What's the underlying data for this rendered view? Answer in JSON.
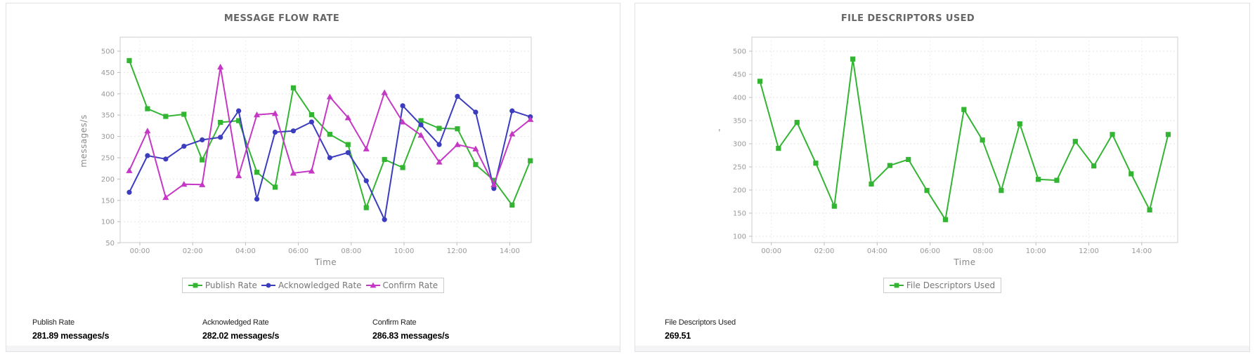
{
  "panels": [
    {
      "name": "message-flow-rate",
      "stats": [
        {
          "label": "Publish Rate",
          "value": "281.89 messages/s"
        },
        {
          "label": "Acknowledged Rate",
          "value": "282.02 messages/s"
        },
        {
          "label": "Confirm Rate",
          "value": "286.83 messages/s"
        }
      ]
    },
    {
      "name": "file-descriptors-used",
      "stats": [
        {
          "label": "File Descriptors Used",
          "value": "269.51"
        }
      ]
    }
  ],
  "chart_data": [
    {
      "type": "line",
      "title": "MESSAGE FLOW RATE",
      "xlabel": "Time",
      "ylabel": "messages/s",
      "legend_position": "bottom",
      "grid": true,
      "x_tick_labels": [
        "00:00",
        "02:00",
        "04:00",
        "06:00",
        "08:00",
        "10:00",
        "12:00",
        "14:00"
      ],
      "x_tick_hours": [
        0,
        2,
        4,
        6,
        8,
        10,
        12,
        14
      ],
      "y_ticks": [
        50,
        100,
        150,
        200,
        250,
        300,
        350,
        400,
        450,
        500
      ],
      "ylim": [
        50,
        535
      ],
      "xlim_hours": [
        -0.75,
        14.85
      ],
      "x_hours": [
        -0.4,
        0.29,
        0.98,
        1.67,
        2.36,
        3.05,
        3.74,
        4.43,
        5.12,
        5.81,
        6.5,
        7.19,
        7.88,
        8.57,
        9.26,
        9.95,
        10.64,
        11.33,
        12.02,
        12.71,
        13.4,
        14.09,
        14.78
      ],
      "series": [
        {
          "name": "Publish Rate",
          "color": "#33b533",
          "marker": "square",
          "values": [
            478,
            365,
            347,
            352,
            245,
            333,
            337,
            216,
            181,
            414,
            351,
            305,
            281,
            133,
            246,
            227,
            337,
            319,
            318,
            234,
            197,
            139,
            243
          ]
        },
        {
          "name": "Acknowledged Rate",
          "color": "#3c3cbe",
          "marker": "circle",
          "values": [
            169,
            255,
            247,
            277,
            292,
            298,
            360,
            153,
            310,
            313,
            334,
            250,
            262,
            196,
            105,
            372,
            327,
            281,
            394,
            357,
            178,
            360,
            346
          ]
        },
        {
          "name": "Confirm Rate",
          "color": "#c438c4",
          "marker": "triangle",
          "values": [
            220,
            313,
            157,
            188,
            187,
            463,
            208,
            351,
            354,
            214,
            219,
            393,
            344,
            271,
            403,
            334,
            303,
            240,
            281,
            271,
            187,
            306,
            340
          ]
        }
      ]
    },
    {
      "type": "line",
      "title": "FILE DESCRIPTORS USED",
      "xlabel": "Time",
      "ylabel": "'",
      "legend_position": "bottom",
      "grid": true,
      "x_tick_labels": [
        "00:00",
        "02:00",
        "04:00",
        "06:00",
        "08:00",
        "10:00",
        "12:00",
        "14:00"
      ],
      "x_tick_hours": [
        0,
        2,
        4,
        6,
        8,
        10,
        12,
        14
      ],
      "y_ticks": [
        100,
        150,
        200,
        250,
        300,
        350,
        400,
        450,
        500
      ],
      "ylim": [
        85,
        535
      ],
      "xlim_hours": [
        -0.75,
        15.35
      ],
      "x_hours": [
        -0.43,
        0.27,
        0.97,
        1.68,
        2.38,
        3.08,
        3.78,
        4.48,
        5.18,
        5.88,
        6.58,
        7.28,
        7.98,
        8.69,
        9.39,
        10.09,
        10.79,
        11.49,
        12.19,
        12.89,
        13.6,
        14.3,
        15.0
      ],
      "series": [
        {
          "name": "File Descriptors Used",
          "color": "#33b533",
          "marker": "square",
          "values": [
            435,
            290,
            346,
            258,
            165,
            483,
            213,
            253,
            266,
            199,
            136,
            374,
            308,
            199,
            343,
            223,
            221,
            305,
            252,
            320,
            235,
            157,
            320
          ]
        }
      ]
    }
  ]
}
